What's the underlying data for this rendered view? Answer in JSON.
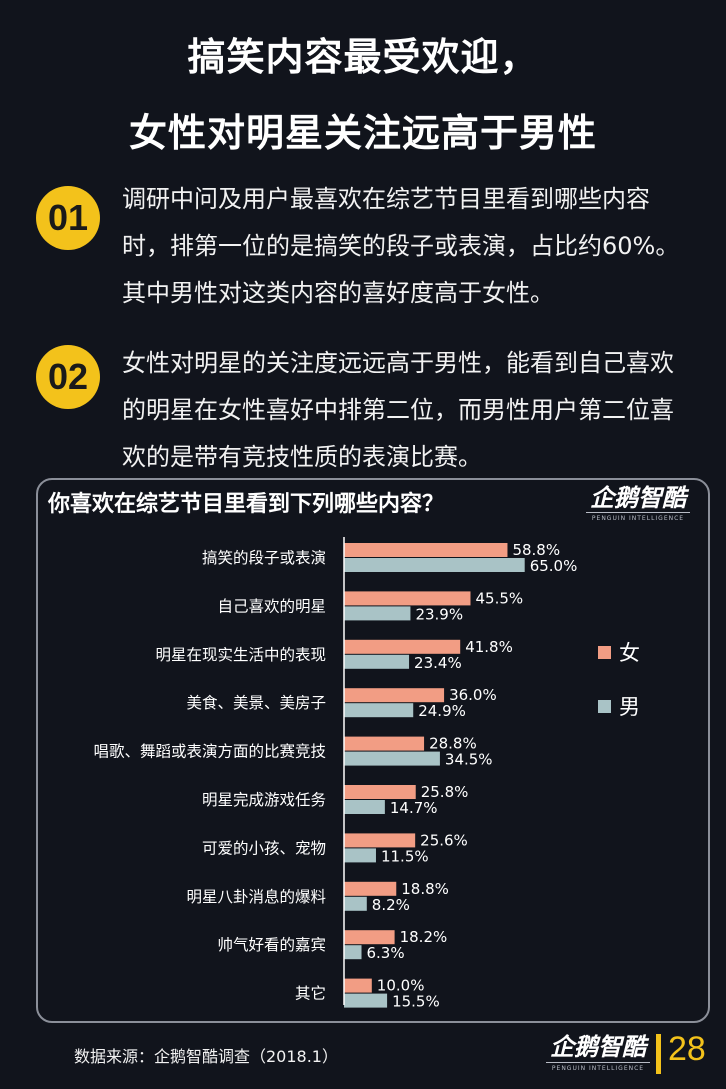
{
  "title_line1": "搞笑内容最受欢迎，",
  "title_line2": "女性对明星关注远高于男性",
  "points": [
    {
      "num": "01",
      "text": "调研中问及用户最喜欢在综艺节目里看到哪些内容时，排第一位的是搞笑的段子或表演，占比约60%。其中男性对这类内容的喜好度高于女性。"
    },
    {
      "num": "02",
      "text": "女性对明星的关注度远远高于男性，能看到自己喜欢的明星在女性喜好中排第二位，而男性用户第二位喜欢的是带有竞技性质的表演比赛。"
    }
  ],
  "logo": {
    "text": "企鹅智酷",
    "sub": "PENGUIN INTELLIGENCE"
  },
  "source": "数据来源：企鹅智酷调查（2018.1）",
  "page_number": "28",
  "colors": {
    "female": "#f29d84",
    "male": "#a9c3c6",
    "accent": "#f3c21b",
    "background": "#11141c"
  },
  "chart_data": {
    "type": "bar",
    "orientation": "horizontal",
    "title": "你喜欢在综艺节目里看到下列哪些内容？",
    "categories": [
      "搞笑的段子或表演",
      "自己喜欢的明星",
      "明星在现实生活中的表现",
      "美食、美景、美房子",
      "唱歌、舞蹈或表演方面的比赛竞技",
      "明星完成游戏任务",
      "可爱的小孩、宠物",
      "明星八卦消息的爆料",
      "帅气好看的嘉宾",
      "其它"
    ],
    "series": [
      {
        "name": "女",
        "values": [
          58.8,
          45.5,
          41.8,
          36.0,
          28.8,
          25.8,
          25.6,
          18.8,
          18.2,
          10.0
        ],
        "labels": [
          "58.8%",
          "45.5%",
          "41.8%",
          "36.0%",
          "28.8%",
          "25.8%",
          "25.6%",
          "18.8%",
          "18.2%",
          "10.0%"
        ]
      },
      {
        "name": "男",
        "values": [
          65.0,
          23.9,
          23.4,
          24.9,
          34.5,
          14.7,
          11.5,
          8.2,
          6.3,
          15.5
        ],
        "labels": [
          "65.0%",
          "23.9%",
          "23.4%",
          "24.9%",
          "34.5%",
          "14.7%",
          "11.5%",
          "8.2%",
          "6.3%",
          "15.5%"
        ]
      }
    ],
    "unit": "%",
    "legend": "right",
    "grid": false
  }
}
